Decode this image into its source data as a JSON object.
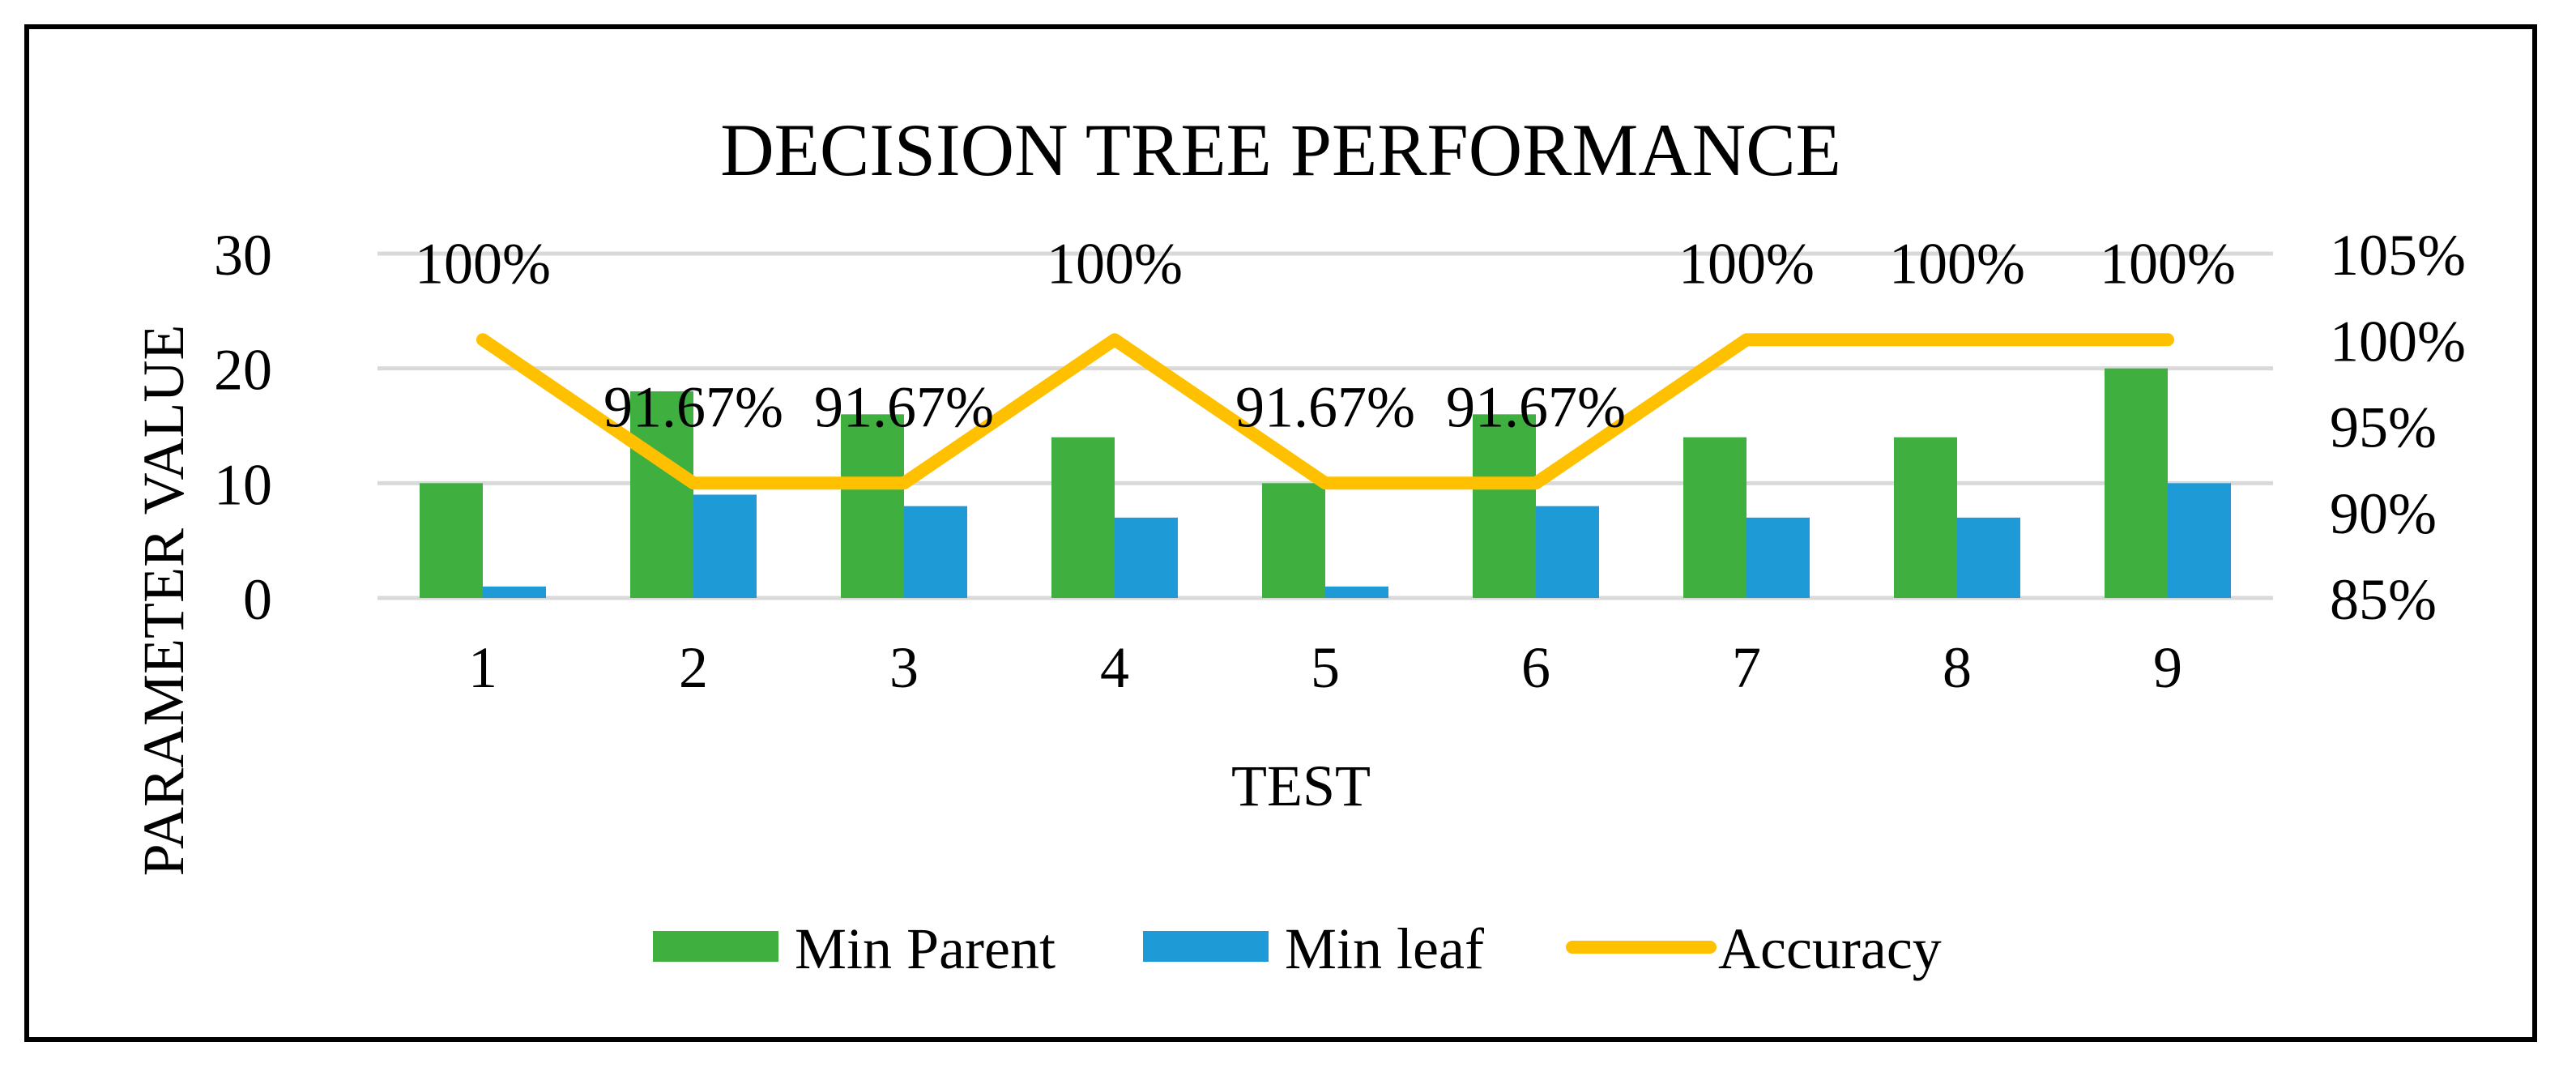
{
  "chart_data": {
    "type": "bar",
    "title": "DECISION TREE PERFORMANCE",
    "xlabel": "TEST",
    "ylabel": "PARAMETER VALUE",
    "categories": [
      "1",
      "2",
      "3",
      "4",
      "5",
      "6",
      "7",
      "8",
      "9"
    ],
    "series": [
      {
        "name": "Min Parent",
        "kind": "bar",
        "axis": "left",
        "color": "#3faf3f",
        "values": [
          10,
          18,
          16,
          14,
          10,
          16,
          14,
          14,
          20
        ]
      },
      {
        "name": "Min leaf",
        "kind": "bar",
        "axis": "left",
        "color": "#1e9bd7",
        "values": [
          1,
          9,
          8,
          7,
          1,
          8,
          7,
          7,
          10
        ]
      },
      {
        "name": "Accuracy",
        "kind": "line",
        "axis": "right",
        "color": "#ffc000",
        "values": [
          100,
          91.67,
          91.67,
          100,
          91.67,
          91.67,
          100,
          100,
          100
        ],
        "labels": [
          "100%",
          "91.67%",
          "91.67%",
          "100%",
          "91.67%",
          "91.67%",
          "100%",
          "100%",
          "100%"
        ]
      }
    ],
    "ylim": [
      0,
      30
    ],
    "yticks": [
      "0",
      "10",
      "20",
      "30"
    ],
    "y2lim": [
      85,
      105
    ],
    "y2ticks": [
      "85%",
      "90%",
      "95%",
      "100%",
      "105%"
    ],
    "grid": true,
    "legend": "bottom"
  }
}
